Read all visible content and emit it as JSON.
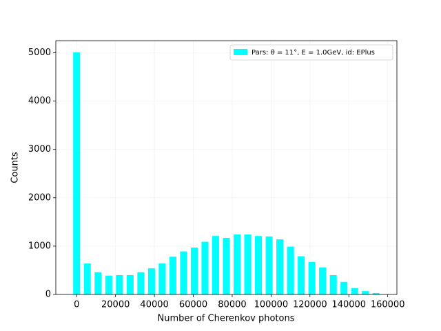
{
  "chart_data": {
    "type": "histogram",
    "xlabel": "Number of Cherenkov photons",
    "ylabel": "Counts",
    "bins": [
      -2750,
      2750,
      8250,
      13750,
      19250,
      24750,
      30250,
      35750,
      41250,
      46750,
      52250,
      57750,
      63250,
      68750,
      74250,
      79750,
      85250,
      90750,
      96250,
      101750,
      107250,
      112750,
      118250,
      123750,
      129250,
      134750,
      140250,
      145750,
      151250,
      156750
    ],
    "series": [
      {
        "name": "Pars: θ = 11°, E = 1.0GeV, id: EPlus",
        "color": "#00ffff",
        "values": [
          5010,
          640,
          460,
          390,
          400,
          400,
          460,
          540,
          640,
          780,
          890,
          970,
          1090,
          1210,
          1170,
          1240,
          1240,
          1210,
          1200,
          1140,
          990,
          790,
          670,
          560,
          400,
          260,
          130,
          70,
          30
        ]
      }
    ],
    "xlim": [
      -10725,
      164725
    ],
    "xticks": [
      0,
      20000,
      40000,
      60000,
      80000,
      100000,
      120000,
      140000,
      160000
    ],
    "ylim": [
      0,
      5250
    ],
    "yticks": [
      0,
      1000,
      2000,
      3000,
      4000,
      5000
    ],
    "grid": true,
    "legend_position": "upper right"
  }
}
